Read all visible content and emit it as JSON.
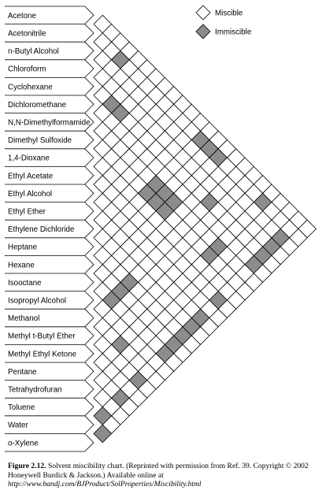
{
  "chart_data": {
    "type": "heatmap",
    "title": "",
    "legend": {
      "placement": "top-right",
      "entries": [
        {
          "label": "Miscible",
          "color": "#ffffff"
        },
        {
          "label": "Immiscible",
          "color": "#8c8c8c"
        }
      ]
    },
    "solvents": [
      "Acetone",
      "Acetonitrile",
      "n-Butyl Alcohol",
      "Chloroform",
      "Cyclohexane",
      "Dichloromethane",
      "N,N-Dimethylformamide",
      "Dimethyl Sulfoxide",
      "1,4-Dioxane",
      "Ethyl Acetate",
      "Ethyl Alcohol",
      "Ethyl Ether",
      "Ethylene Dichloride",
      "Heptane",
      "Hexane",
      "Isooctane",
      "Isopropyl Alcohol",
      "Methanol",
      "Methyl t-Butyl Ether",
      "Methyl Ethyl Ketone",
      "Pentane",
      "Tetrahydrofuran",
      "Toluene",
      "Water",
      "o-Xylene"
    ],
    "immiscible_pairs": [
      [
        "n-Butyl Alcohol",
        "Water"
      ],
      [
        "Acetonitrile",
        "Cyclohexane"
      ],
      [
        "Acetonitrile",
        "Heptane"
      ],
      [
        "Acetonitrile",
        "Hexane"
      ],
      [
        "Acetonitrile",
        "Isooctane"
      ],
      [
        "Acetonitrile",
        "Pentane"
      ],
      [
        "Chloroform",
        "Water"
      ],
      [
        "Cyclohexane",
        "Dimethyl Sulfoxide"
      ],
      [
        "Cyclohexane",
        "N,N-Dimethylformamide"
      ],
      [
        "Cyclohexane",
        "Methanol"
      ],
      [
        "Cyclohexane",
        "Water"
      ],
      [
        "Dichloromethane",
        "Water"
      ],
      [
        "N,N-Dimethylformamide",
        "Heptane"
      ],
      [
        "N,N-Dimethylformamide",
        "Hexane"
      ],
      [
        "N,N-Dimethylformamide",
        "Isooctane"
      ],
      [
        "N,N-Dimethylformamide",
        "Pentane"
      ],
      [
        "Dimethyl Sulfoxide",
        "Heptane"
      ],
      [
        "Dimethyl Sulfoxide",
        "Hexane"
      ],
      [
        "Dimethyl Sulfoxide",
        "Isooctane"
      ],
      [
        "Dimethyl Sulfoxide",
        "Pentane"
      ],
      [
        "Ethyl Acetate",
        "Water"
      ],
      [
        "Ethyl Ether",
        "Water"
      ],
      [
        "Ethylene Dichloride",
        "Water"
      ],
      [
        "Heptane",
        "Methanol"
      ],
      [
        "Heptane",
        "Water"
      ],
      [
        "Hexane",
        "Methanol"
      ],
      [
        "Hexane",
        "Water"
      ],
      [
        "Isooctane",
        "Methanol"
      ],
      [
        "Isooctane",
        "Water"
      ],
      [
        "Methyl t-Butyl Ether",
        "Water"
      ],
      [
        "Methanol",
        "Pentane"
      ],
      [
        "Pentane",
        "Water"
      ],
      [
        "Toluene",
        "Water"
      ],
      [
        "Water",
        "o-Xylene"
      ]
    ]
  },
  "caption": {
    "figure_label": "Figure 2.12.",
    "text": " Solvent miscibility chart. (Reprinted with permission from Ref. 39. Copyright © 2002 Honeywell Burdick & Jackson.) Available online at",
    "url": "http://www.bandj.com/BJProduct/SolProperties/Miscibility.html"
  }
}
